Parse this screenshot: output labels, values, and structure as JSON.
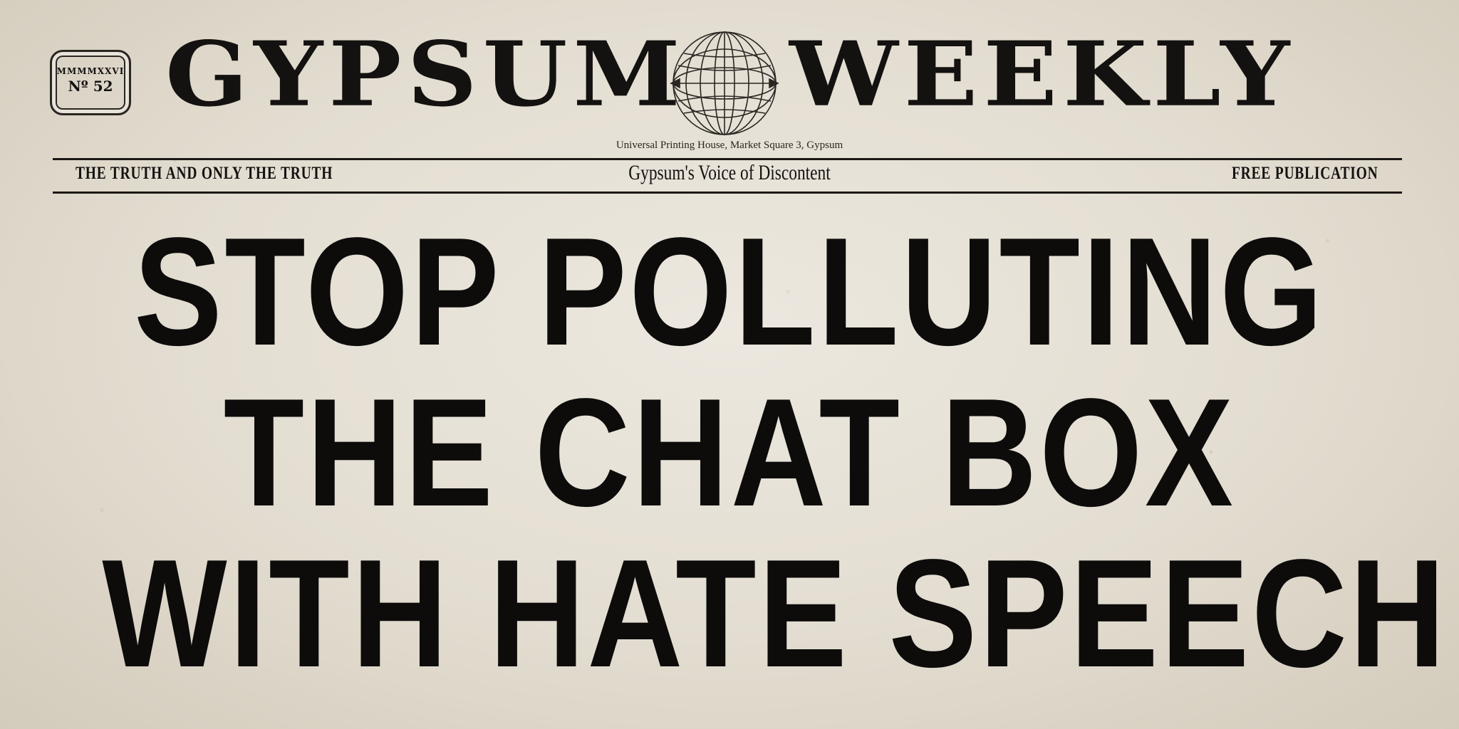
{
  "masthead": {
    "title_left": "GYPSUM",
    "title_right": "WEEKLY",
    "emblem_icon": "globe-icon",
    "issue_year": "MMMMXXVI",
    "issue_number": "Nº 52",
    "address": "Universal Printing House, Market Square 3, Gypsum"
  },
  "tagline": {
    "left": "THE TRUTH AND ONLY THE TRUTH",
    "center": "Gypsum's Voice of Discontent",
    "right": "FREE PUBLICATION"
  },
  "headline": {
    "lines": [
      "STOP POLLUTING",
      "THE CHAT BOX",
      "WITH HATE SPEECH"
    ]
  },
  "colors": {
    "paper": "#e6e1d6",
    "ink": "#141210"
  }
}
